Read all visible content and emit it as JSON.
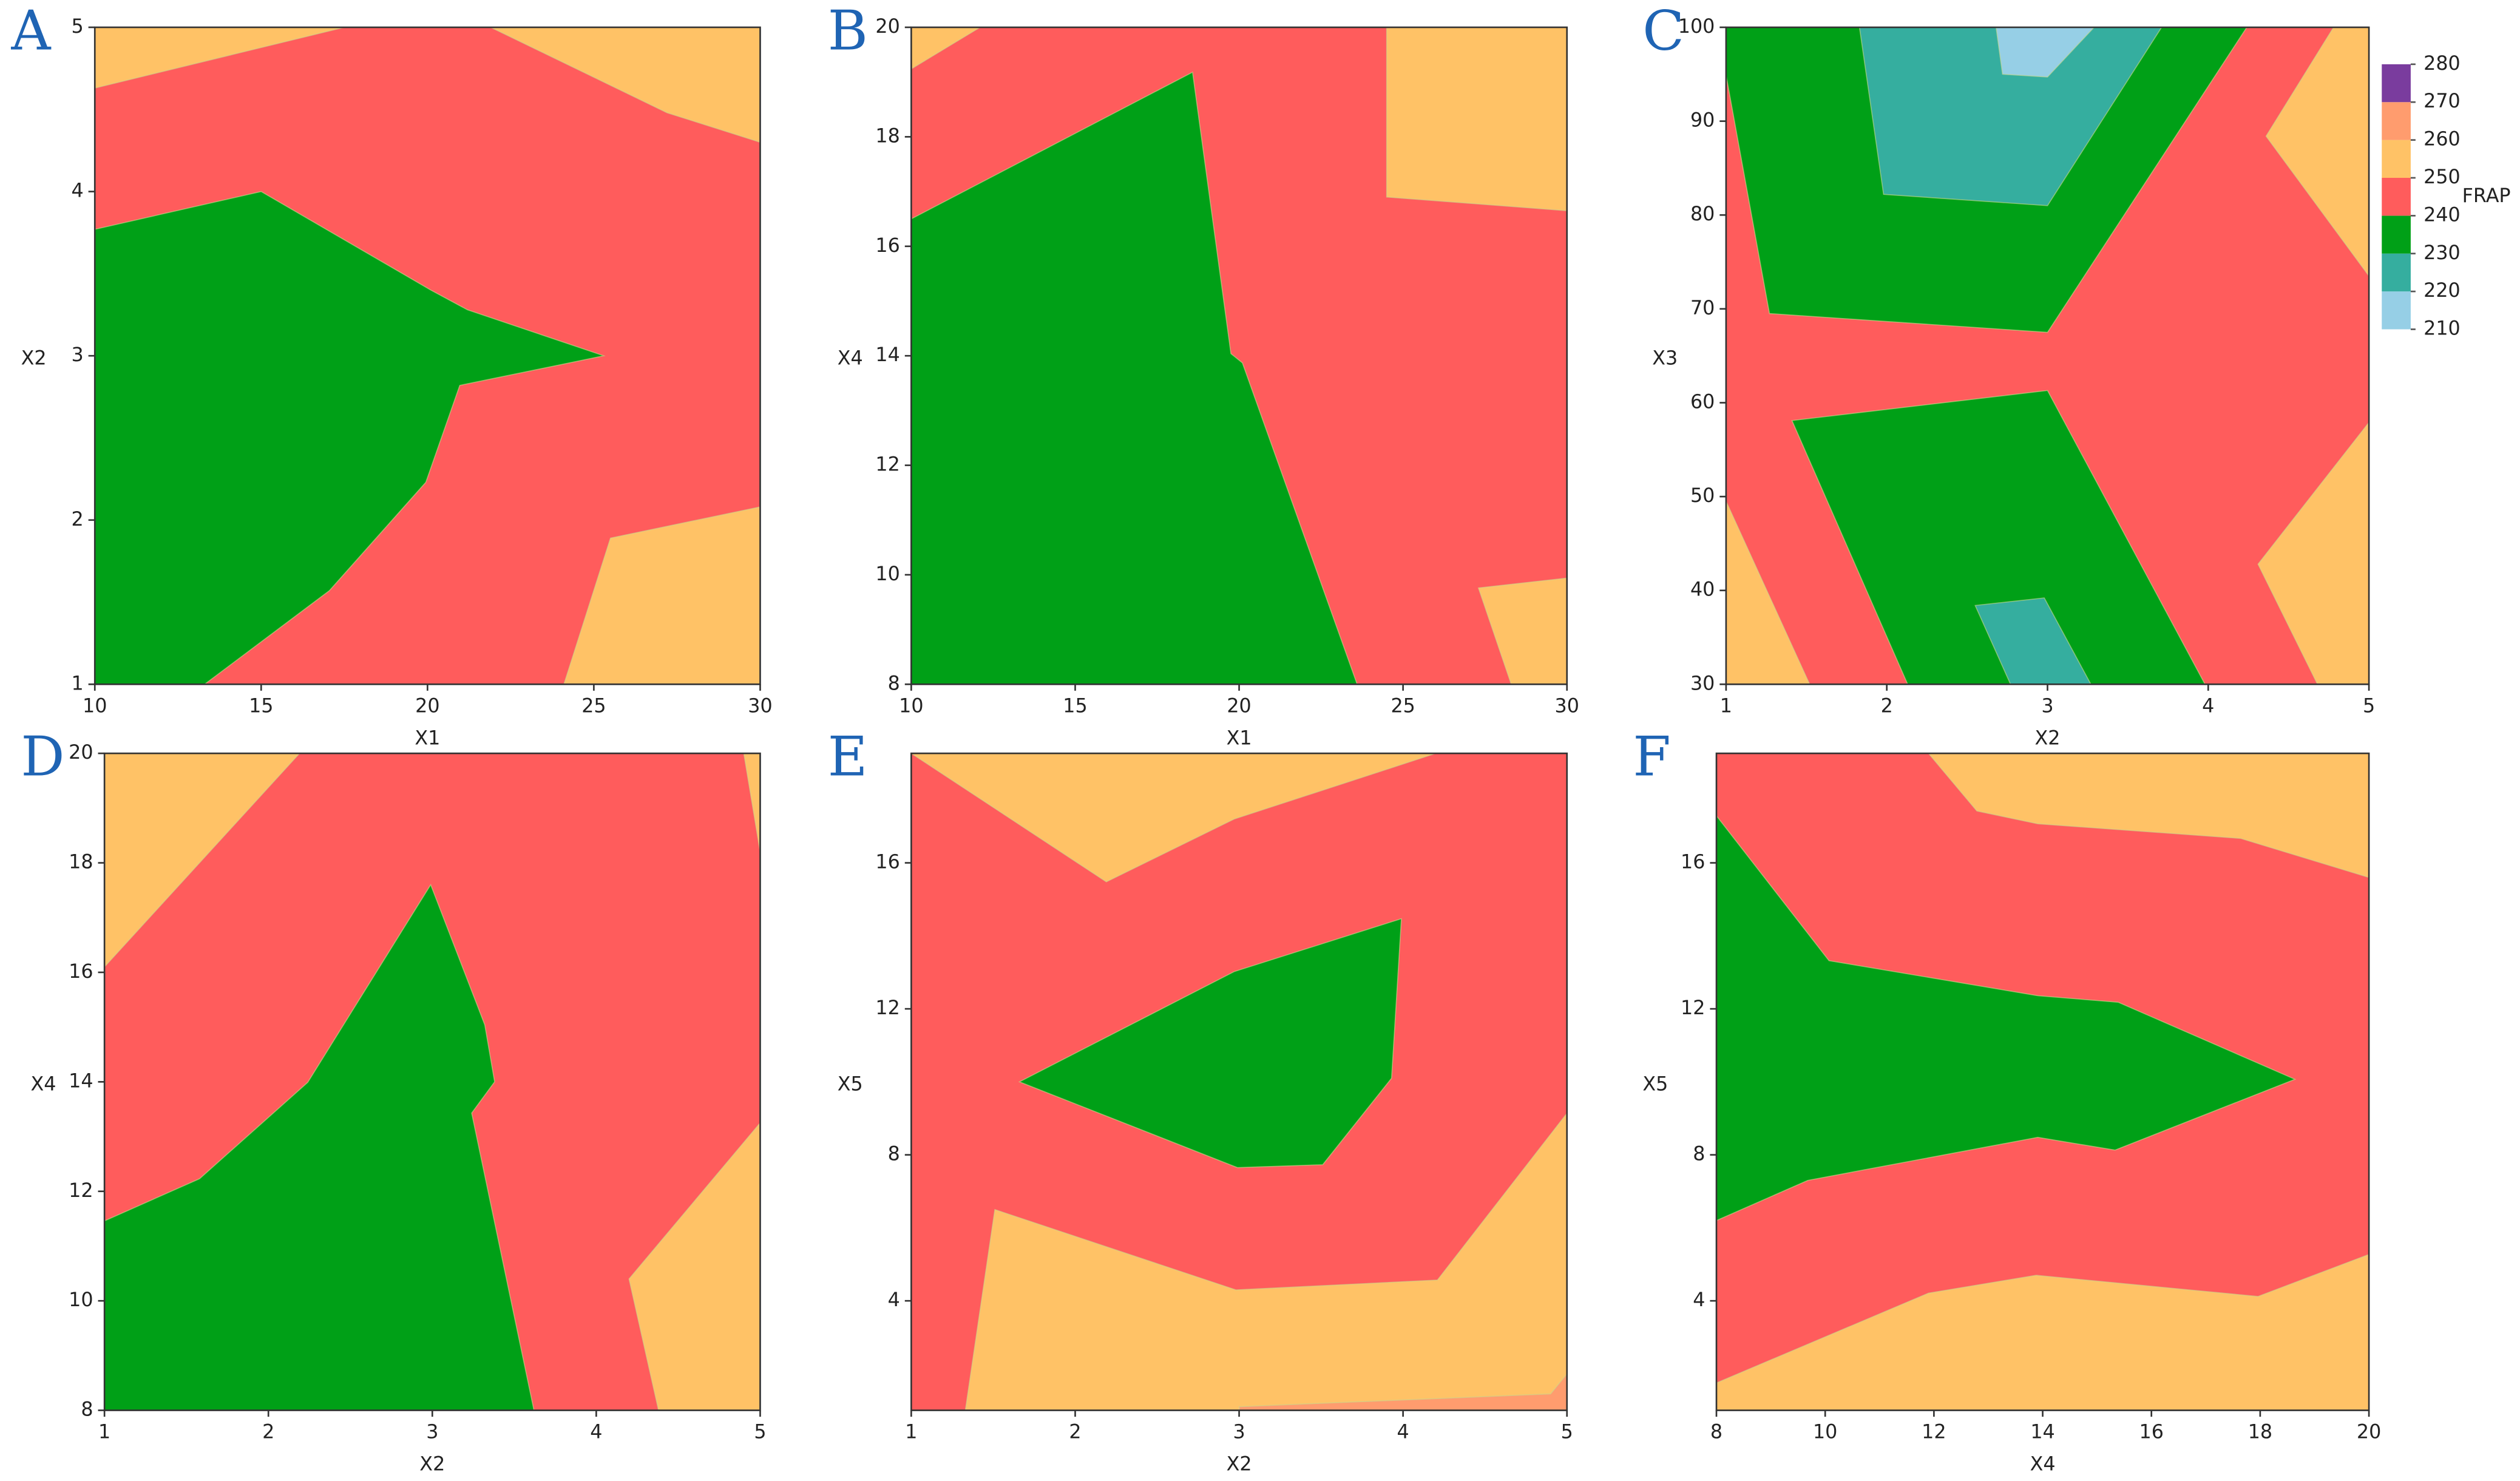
{
  "chart_data": [
    {
      "type": "contour",
      "label": "A",
      "xlabel": "X1",
      "ylabel": "X2",
      "xlim": [
        10,
        30
      ],
      "ylim": [
        1,
        5
      ],
      "xticks": [
        10,
        15,
        20,
        25,
        30
      ],
      "yticks": [
        1,
        2,
        3,
        4,
        5
      ],
      "regions": [
        {
          "level": 250,
          "x": [
            10,
            30,
            30,
            10
          ],
          "y": [
            1,
            1,
            5,
            5
          ]
        },
        {
          "level": 240,
          "x": [
            10,
            24.1,
            25.5,
            30,
            30,
            27.2,
            21.9,
            17.5,
            10
          ],
          "y": [
            1,
            1,
            1.89,
            2.08,
            4.3,
            4.48,
            5,
            5,
            4.63
          ]
        },
        {
          "level": 230,
          "x": [
            10,
            13.3,
            17.05,
            19.95,
            20.97,
            25.3,
            21.2,
            20.1,
            15,
            10
          ],
          "y": [
            1,
            1,
            1.57,
            2.23,
            2.82,
            3,
            3.28,
            3.4,
            4,
            3.77
          ]
        }
      ]
    },
    {
      "type": "contour",
      "label": "B",
      "xlabel": "X1",
      "ylabel": "X4",
      "xlim": [
        10,
        30
      ],
      "ylim": [
        8,
        20
      ],
      "xticks": [
        10,
        15,
        20,
        25,
        30
      ],
      "yticks": [
        8,
        10,
        12,
        14,
        16,
        18,
        20
      ],
      "regions": [
        {
          "level": 250,
          "x": [
            10,
            30,
            30,
            10
          ],
          "y": [
            8,
            8,
            20,
            20
          ]
        },
        {
          "level": 240,
          "x": [
            10,
            28.3,
            27.3,
            30,
            30,
            24.5,
            24.5,
            12.1,
            10
          ],
          "y": [
            8,
            8,
            9.76,
            9.94,
            16.65,
            16.9,
            20,
            20,
            19.24
          ]
        },
        {
          "level": 230,
          "x": [
            10,
            23.6,
            20.1,
            19.75,
            18.58,
            10
          ],
          "y": [
            8,
            8,
            13.87,
            14.04,
            19.18,
            16.5
          ]
        }
      ]
    },
    {
      "type": "contour",
      "label": "C",
      "xlabel": "X2",
      "ylabel": "X3",
      "xlim": [
        1,
        5
      ],
      "ylim": [
        30,
        100
      ],
      "xticks": [
        1,
        2,
        3,
        4,
        5
      ],
      "yticks": [
        30,
        40,
        50,
        60,
        70,
        80,
        90,
        100
      ],
      "regions": [
        {
          "level": 250,
          "x": [
            1,
            5,
            5,
            1
          ],
          "y": [
            30,
            30,
            100,
            100
          ]
        },
        {
          "level": 240,
          "x": [
            1,
            1.52,
            4.68,
            4.31,
            5,
            5,
            4.36,
            4.78,
            1
          ],
          "y": [
            49.5,
            30,
            30,
            42.8,
            57.9,
            73.5,
            88.4,
            100,
            100
          ]
        },
        {
          "level": 230,
          "x": [
            1,
            4.24,
            3,
            1.27,
            1
          ],
          "y": [
            100,
            100,
            67.5,
            69.5,
            94.9
          ]
        },
        {
          "level": 220,
          "x": [
            1.83,
            3.71,
            3,
            1.98
          ],
          "y": [
            100,
            100,
            81,
            82.2
          ]
        },
        {
          "level": 210,
          "x": [
            2.68,
            3.29,
            3,
            2.72
          ],
          "y": [
            100,
            100,
            94.7,
            95
          ]
        },
        {
          "level": 230,
          "x": [
            2.13,
            3.98,
            3,
            1.41
          ],
          "y": [
            30,
            30,
            61.3,
            58.1
          ]
        },
        {
          "level": 220,
          "x": [
            2.55,
            2.98,
            3.27,
            2.77
          ],
          "y": [
            38.4,
            39.2,
            30,
            30
          ]
        }
      ]
    },
    {
      "type": "contour",
      "label": "D",
      "xlabel": "X2",
      "ylabel": "X4",
      "xlim": [
        1,
        5
      ],
      "ylim": [
        8,
        20
      ],
      "xticks": [
        1,
        2,
        3,
        4,
        5
      ],
      "yticks": [
        8,
        10,
        12,
        14,
        16,
        18,
        20
      ],
      "regions": [
        {
          "level": 250,
          "x": [
            1,
            5,
            5,
            1
          ],
          "y": [
            8,
            8,
            20,
            20
          ]
        },
        {
          "level": 240,
          "x": [
            1,
            4.38,
            4.2,
            5,
            5,
            4.9,
            2.19,
            1
          ],
          "y": [
            8,
            8,
            10.4,
            13.25,
            18.2,
            20,
            20,
            16.1
          ]
        },
        {
          "level": 230,
          "x": [
            1,
            3.62,
            3.24,
            3.38,
            3.32,
            2.99,
            2.24,
            1.58,
            1
          ],
          "y": [
            8,
            8,
            13.43,
            14,
            15.04,
            17.6,
            13.99,
            12.23,
            11.46
          ]
        }
      ]
    },
    {
      "type": "contour",
      "label": "E",
      "xlabel": "X2",
      "ylabel": "X5",
      "xlim": [
        1,
        5
      ],
      "ylim": [
        1,
        19
      ],
      "xticks": [
        1,
        2,
        3,
        4,
        5
      ],
      "yticks": [
        4,
        8,
        12,
        16
      ],
      "regions": [
        {
          "level": 250,
          "x": [
            1,
            5,
            5,
            1
          ],
          "y": [
            1,
            1,
            19,
            19
          ]
        },
        {
          "level": 240,
          "x": [
            1,
            1.33,
            1.51,
            2.98,
            4.21,
            5,
            5,
            4.2,
            2.97,
            2.19,
            1
          ],
          "y": [
            1,
            1,
            6.5,
            4.3,
            4.57,
            9.14,
            19,
            19,
            17.2,
            15.48,
            19
          ]
        },
        {
          "level": 230,
          "x": [
            1.66,
            2.97,
            3.99,
            3.93,
            3.51,
            2.99
          ],
          "y": [
            10,
            13.02,
            14.47,
            10.1,
            7.73,
            7.65
          ]
        },
        {
          "level": 260,
          "x": [
            3,
            3,
            4.9,
            5,
            5
          ],
          "y": [
            1,
            1.1,
            1.45,
            2,
            1
          ]
        }
      ]
    },
    {
      "type": "contour",
      "label": "F",
      "xlabel": "X4",
      "ylabel": "X5",
      "xlim": [
        8,
        20
      ],
      "ylim": [
        1,
        19
      ],
      "xticks": [
        8,
        10,
        12,
        14,
        16,
        18,
        20
      ],
      "yticks": [
        4,
        8,
        12,
        16
      ],
      "regions": [
        {
          "level": 250,
          "x": [
            8,
            20,
            20,
            8
          ],
          "y": [
            1,
            1,
            19,
            19
          ]
        },
        {
          "level": 240,
          "x": [
            8,
            11.9,
            13.88,
            17.96,
            20,
            20,
            17.64,
            13.91,
            12.79,
            11.9,
            8
          ],
          "y": [
            1.75,
            4.21,
            4.7,
            4.12,
            5.27,
            15.6,
            16.67,
            17.07,
            17.42,
            19,
            19
          ]
        },
        {
          "level": 230,
          "x": [
            8,
            10.07,
            13.91,
            15.39,
            18.64,
            15.33,
            13.91,
            9.68,
            8
          ],
          "y": [
            17.29,
            13.32,
            12.36,
            12.18,
            10.07,
            8.13,
            8.48,
            7.3,
            6.2
          ]
        }
      ]
    }
  ],
  "colorbar": {
    "title": "FRAP",
    "ticks": [
      210,
      220,
      230,
      240,
      250,
      260,
      270,
      280
    ],
    "colors": [
      "#96cfe6",
      "#35ae9f",
      "#00a017",
      "#ff5c5c",
      "#ffc266",
      "#ff9c6e",
      "#7a3c9e"
    ]
  }
}
